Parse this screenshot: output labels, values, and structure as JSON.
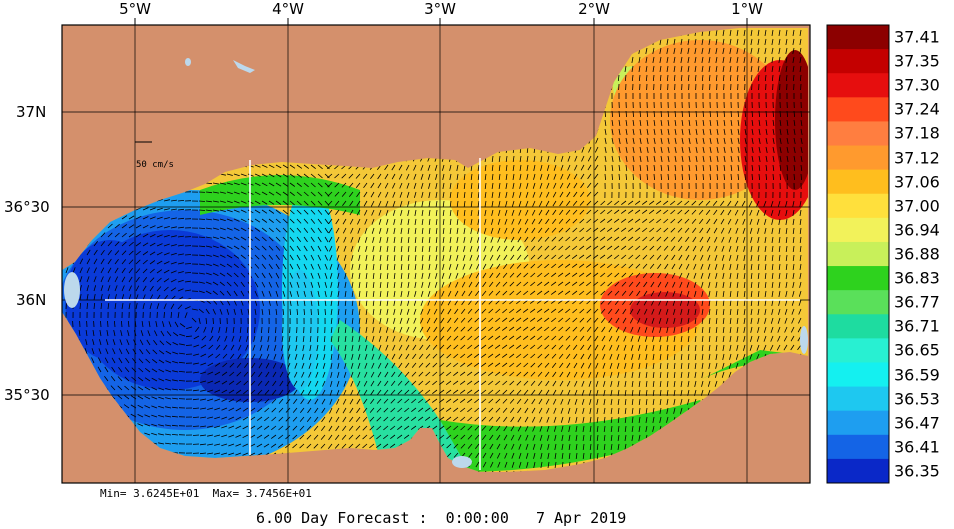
{
  "map": {
    "longitude_labels": [
      "5°W",
      "4°W",
      "3°W",
      "2°W",
      "1°W"
    ],
    "latitude_labels": [
      "37N",
      "36°30",
      "36N",
      "35°30"
    ],
    "scale_label": "50 cm/s",
    "land_color": "#d4906c",
    "sea_color": "#bcd8ec"
  },
  "colorbar": {
    "values": [
      "37.41",
      "37.35",
      "37.30",
      "37.24",
      "37.18",
      "37.12",
      "37.06",
      "37.00",
      "36.94",
      "36.88",
      "36.83",
      "36.77",
      "36.71",
      "36.65",
      "36.59",
      "36.53",
      "36.47",
      "36.41",
      "36.35"
    ],
    "colors": [
      "#8c0000",
      "#c40000",
      "#e60e0e",
      "#ff4a1c",
      "#ff7e40",
      "#ff9a2e",
      "#ffbe1e",
      "#ffe03c",
      "#f2f25a",
      "#c8f05a",
      "#2ed21e",
      "#5ae05a",
      "#1edca0",
      "#28f0d2",
      "#14f0f0",
      "#1ec8f0",
      "#1e9ef0",
      "#1464e6",
      "#0a28c8"
    ]
  },
  "stats": {
    "min_label": "Min= 3.6245E+01",
    "max_label": "Max= 3.7456E+01"
  },
  "footer": {
    "forecast": "6.00 Day Forecast :",
    "time": "0:00:00",
    "date": "7 Apr 2019"
  }
}
